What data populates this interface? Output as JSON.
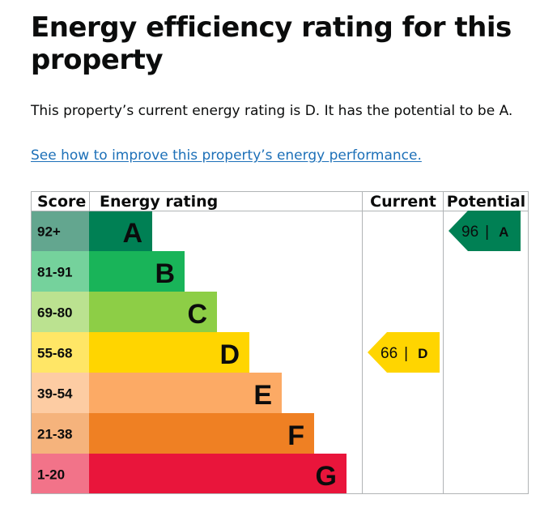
{
  "page": {
    "title": "Energy efficiency rating for this property",
    "intro": "This property’s current energy rating is D. It has the potential to be A.",
    "improve_link": "See how to improve this property’s energy performance."
  },
  "chart_data": {
    "type": "table",
    "headers": {
      "score": "Score",
      "energy_rating": "Energy rating",
      "current": "Current",
      "potential": "Potential"
    },
    "bands": [
      {
        "letter": "A",
        "score": "92+",
        "color": "#008054",
        "score_color": "#63a68f"
      },
      {
        "letter": "B",
        "score": "81-91",
        "color": "#19b459",
        "score_color": "#75d29c"
      },
      {
        "letter": "C",
        "score": "69-80",
        "color": "#8dce46",
        "score_color": "#bbe290"
      },
      {
        "letter": "D",
        "score": "55-68",
        "color": "#ffd500",
        "score_color": "#ffe666"
      },
      {
        "letter": "E",
        "score": "39-54",
        "color": "#fcaa65",
        "score_color": "#fdcca3"
      },
      {
        "letter": "F",
        "score": "21-38",
        "color": "#ef8023",
        "score_color": "#f5b37c"
      },
      {
        "letter": "G",
        "score": "1-20",
        "color": "#e9153b",
        "score_color": "#f27389"
      }
    ],
    "current": {
      "value": 66,
      "letter": "D",
      "separator": "|"
    },
    "potential": {
      "value": 96,
      "letter": "A",
      "separator": "|"
    }
  }
}
